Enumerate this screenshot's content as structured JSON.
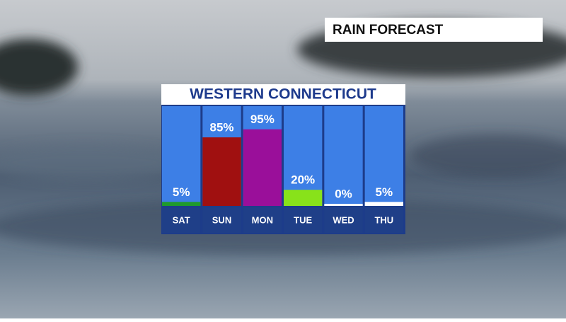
{
  "header": "RAIN FORECAST",
  "chart_data": {
    "type": "bar",
    "title": "WESTERN CONNECTICUT",
    "categories": [
      "SAT",
      "SUN",
      "MON",
      "TUE",
      "WED",
      "THU"
    ],
    "values": [
      5,
      85,
      95,
      20,
      0,
      5
    ],
    "value_labels": [
      "5%",
      "85%",
      "95%",
      "20%",
      "0%",
      "5%"
    ],
    "colors": [
      "#1f9a2c",
      "#a01010",
      "#9a0f9a",
      "#88e21a",
      "#ffffff",
      "#ffffff"
    ],
    "ylim": [
      0,
      100
    ]
  }
}
